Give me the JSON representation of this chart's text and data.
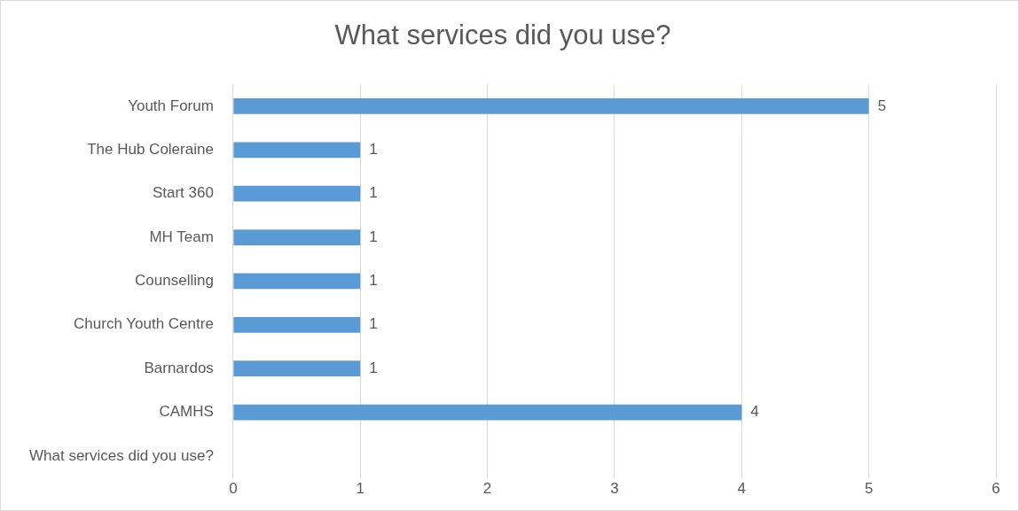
{
  "chart_data": {
    "type": "bar",
    "orientation": "horizontal",
    "title": "What services did you use?",
    "categories": [
      "Youth Forum",
      "The Hub Coleraine",
      "Start 360",
      "MH Team",
      "Counselling",
      "Church Youth Centre",
      "Barnardos",
      "CAMHS",
      "What services did you use?"
    ],
    "values": [
      5,
      1,
      1,
      1,
      1,
      1,
      1,
      4,
      null
    ],
    "color": "#5b9bd5",
    "xlim": [
      0,
      6
    ],
    "xticks": [
      0,
      1,
      2,
      3,
      4,
      5,
      6
    ],
    "grid": "x",
    "data_labels": true,
    "legend": false
  }
}
